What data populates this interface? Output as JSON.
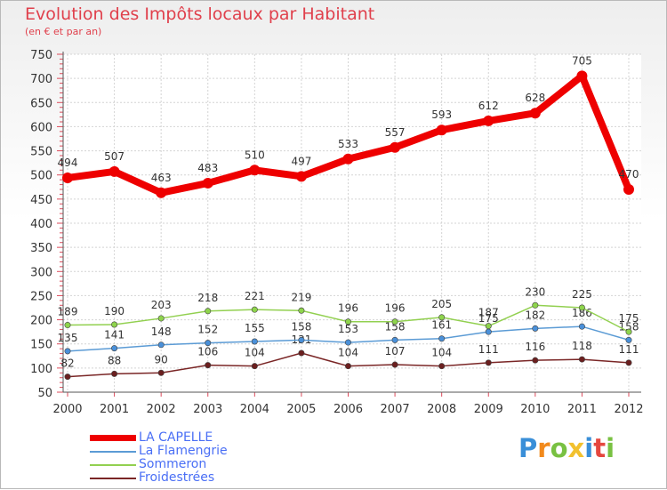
{
  "title": "Evolution des Impôts locaux par Habitant",
  "subtitle": "(en € et par an)",
  "brand": {
    "letters": [
      "P",
      "r",
      "o",
      "x",
      "i",
      "t",
      "i"
    ],
    "colors": [
      "#3a8fd8",
      "#f28a1c",
      "#79c142",
      "#f2c12e",
      "#3a8fd8",
      "#e5473f",
      "#79c142"
    ]
  },
  "chart_data": {
    "type": "line",
    "title": "Evolution des Impôts locaux par Habitant",
    "subtitle": "(en € et par an)",
    "xlabel": "",
    "ylabel": "",
    "ylim": [
      50,
      750
    ],
    "yticks": [
      50,
      100,
      150,
      200,
      250,
      300,
      350,
      400,
      450,
      500,
      550,
      600,
      650,
      700,
      750
    ],
    "grid": true,
    "legend_position": "bottom-left",
    "x": [
      "2000",
      "2001",
      "2002",
      "2003",
      "2004",
      "2005",
      "2006",
      "2007",
      "2008",
      "2009",
      "2010",
      "2011",
      "2012"
    ],
    "series": [
      {
        "name": "Froidestrées",
        "color": "#7a2626",
        "values": [
          82,
          88,
          90,
          106,
          104,
          131,
          104,
          107,
          104,
          111,
          116,
          118,
          111
        ],
        "labels": [
          "82",
          "88",
          "90",
          "106",
          "104",
          "131",
          "104",
          "107",
          "104",
          "111",
          "116",
          "118",
          "111"
        ]
      },
      {
        "name": "La Flamengrie",
        "color": "#5b9bd5",
        "values": [
          135,
          141,
          148,
          152,
          155,
          158,
          153,
          158,
          161,
          175,
          182,
          186,
          158
        ],
        "labels": [
          "135",
          "141",
          "148",
          "152",
          "155",
          "158",
          "153",
          "158",
          "161",
          "175",
          "182",
          "186",
          "158"
        ]
      },
      {
        "name": "Sommeron",
        "color": "#92d050",
        "values": [
          189,
          190,
          203,
          218,
          221,
          219,
          196,
          196,
          205,
          187,
          230,
          225,
          175
        ],
        "labels": [
          "189",
          "190",
          "203",
          "218",
          "221",
          "219",
          "196",
          "196",
          "205",
          "187",
          "230",
          "225",
          "175"
        ]
      },
      {
        "name": "LA CAPELLE",
        "color": "#ee0000",
        "values": [
          494,
          507,
          463,
          483,
          510,
          497,
          533,
          557,
          593,
          612,
          628,
          705,
          470
        ],
        "labels": [
          "494",
          "507",
          "463",
          "483",
          "510",
          "497",
          "533",
          "557",
          "593",
          "612",
          "628",
          "705",
          "470"
        ]
      }
    ],
    "legend": [
      "LA CAPELLE",
      "La Flamengrie",
      "Sommeron",
      "Froidestrées"
    ]
  }
}
